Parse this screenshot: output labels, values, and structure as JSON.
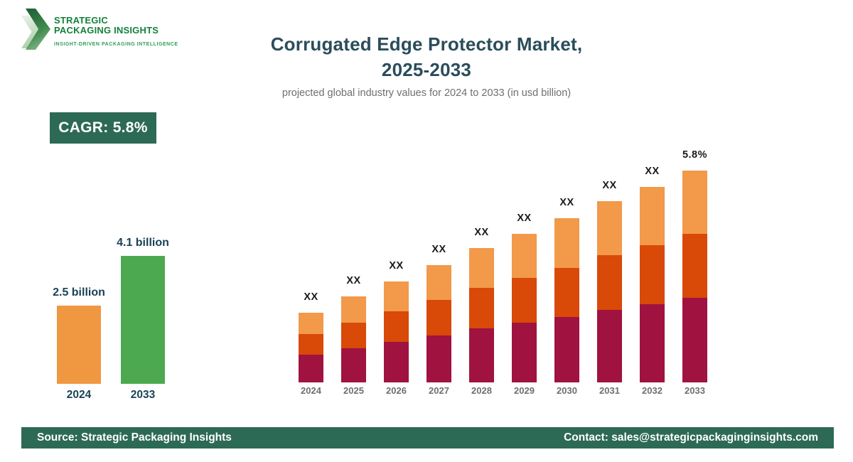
{
  "logo": {
    "line1": "STRATEGIC",
    "line2": "PACKAGING INSIGHTS",
    "tagline": "INSIGHT-DRIVEN PACKAGING INTELLIGENCE"
  },
  "header": {
    "title_line1": "Corrugated Edge Protector Market,",
    "title_line2": "2025-2033",
    "subtitle": "projected global industry values for 2024 to 2033 (in usd billion)"
  },
  "cagr_badge": {
    "label": "CAGR: 5.8%"
  },
  "colors": {
    "title_teal": "#2A4D5A",
    "chart_label_teal": "#1B4257",
    "subtitle_gray": "#6F6F6F",
    "badge_green": "#2D6A55",
    "footer_green": "#2D6A55",
    "logo_green_dark": "#15803D",
    "logo_green_light": "#2F9E57",
    "label_black": "#1A1A1A",
    "axis_year_gray": "#6F6F6F"
  },
  "chart_data": [
    {
      "type": "bar",
      "name": "summary-2024-vs-2033",
      "title": "",
      "categories": [
        "2024",
        "2033"
      ],
      "values": [
        2.5,
        4.1
      ],
      "value_labels": [
        "2.5 billion",
        "4.1 billion"
      ],
      "bar_colors": [
        "#F09741",
        "#4CA950"
      ],
      "unit": "usd billion",
      "ylim": [
        0,
        4.5
      ],
      "grid": false,
      "axes": "none",
      "legend": "none"
    },
    {
      "type": "bar",
      "subtype": "stacked",
      "name": "annual-market-stacked-bars",
      "title": "",
      "categories": [
        "2024",
        "2025",
        "2026",
        "2027",
        "2028",
        "2029",
        "2030",
        "2031",
        "2032",
        "2033"
      ],
      "series": [
        {
          "name": "segment-bottom",
          "color": "#A01240",
          "values": [
            39,
            48,
            57,
            66,
            76,
            84,
            92,
            102,
            110,
            119
          ]
        },
        {
          "name": "segment-middle",
          "color": "#D94907",
          "values": [
            29,
            36,
            43,
            50,
            57,
            63,
            69,
            77,
            83,
            90
          ]
        },
        {
          "name": "segment-top",
          "color": "#F2994A",
          "values": [
            30,
            37,
            42,
            49,
            56,
            62,
            70,
            76,
            82,
            89
          ]
        }
      ],
      "bar_labels": [
        "XX",
        "XX",
        "XX",
        "XX",
        "XX",
        "XX",
        "XX",
        "XX",
        "XX",
        "5.8%"
      ],
      "unit": "relative height; source values masked as XX",
      "grid": false,
      "axes": "none",
      "legend": "none"
    }
  ],
  "footer": {
    "source": "Source: Strategic Packaging Insights",
    "contact": "Contact: sales@strategicpackaginginsights.com"
  }
}
